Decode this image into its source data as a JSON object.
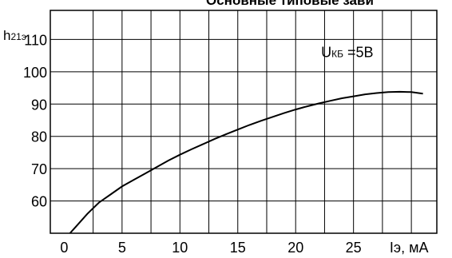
{
  "chart_data": {
    "type": "line",
    "title": "Основные типовые зави",
    "ylabel_main": "h",
    "ylabel_sub": "21э",
    "xlabel": "Iэ, мА",
    "x_ticks": [
      "0",
      "5",
      "10",
      "15",
      "20",
      "25"
    ],
    "y_ticks": [
      "60",
      "70",
      "80",
      "90",
      "100",
      "110"
    ],
    "xlim": [
      -1.2,
      32.2
    ],
    "ylim": [
      50,
      119
    ],
    "grid": true,
    "annotation": {
      "main": "U",
      "sub": "КБ",
      "rest": " =5B"
    },
    "series": [
      {
        "x": [
          0.5,
          1.0,
          2.0,
          3.0,
          4.0,
          5.0,
          6.0,
          7.0,
          8.0,
          9.0,
          10.0,
          11.0,
          12.0,
          13.0,
          14.0,
          15.0,
          16.0,
          17.0,
          18.0,
          19.0,
          20.0,
          21.0,
          22.0,
          23.0,
          24.0,
          25.0,
          26.0,
          27.0,
          28.0,
          29.0,
          30.0,
          31.0
        ],
        "y": [
          50.0,
          52.0,
          56.0,
          59.5,
          62.0,
          64.5,
          66.5,
          68.5,
          70.5,
          72.5,
          74.3,
          76.0,
          77.6,
          79.2,
          80.7,
          82.1,
          83.5,
          84.8,
          86.0,
          87.2,
          88.3,
          89.3,
          90.2,
          91.0,
          91.8,
          92.4,
          93.0,
          93.4,
          93.7,
          93.8,
          93.7,
          93.2
        ]
      }
    ]
  }
}
